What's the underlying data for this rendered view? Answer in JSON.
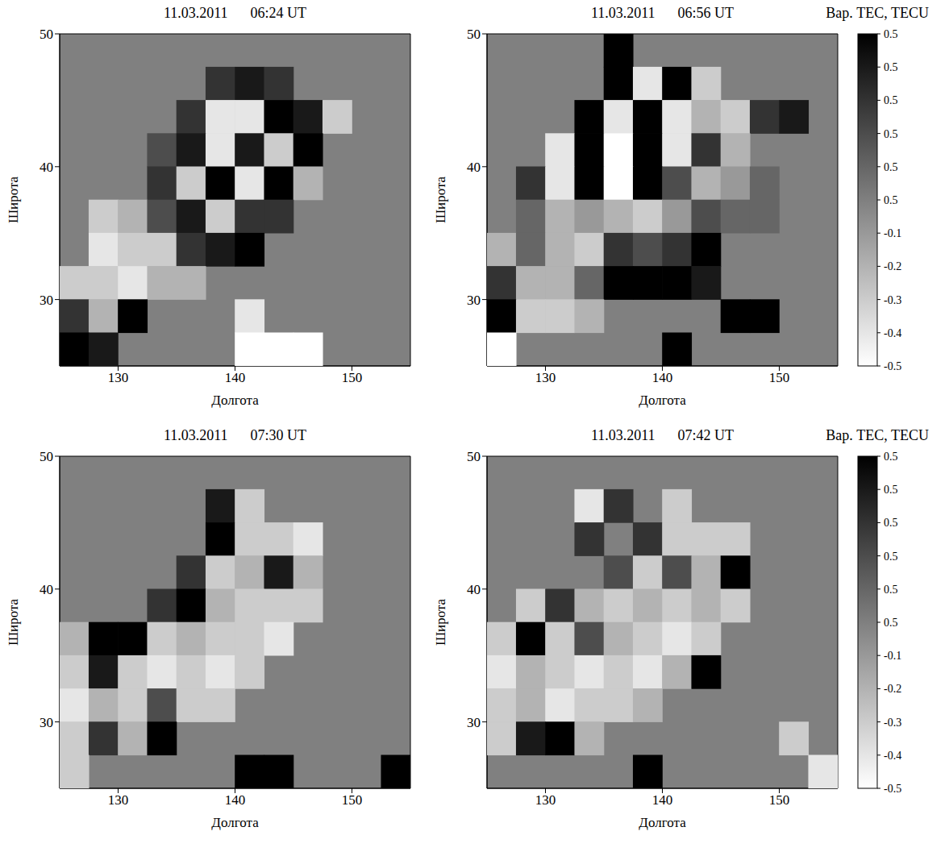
{
  "chart_data": [
    {
      "type": "heatmap",
      "title": "11.03.2011 06:24 UT",
      "x_label": "Долгота",
      "y_label": "Широта",
      "xlim": [
        125,
        155
      ],
      "ylim": [
        25,
        50
      ],
      "xticks": [
        130,
        140,
        150
      ],
      "yticks": [
        30,
        40,
        50
      ],
      "cells": {
        "x": [
          126.25,
          128.75,
          131.25,
          133.75,
          136.25,
          138.75,
          141.25,
          143.75,
          146.25,
          148.75,
          151.25,
          153.75
        ],
        "y": [
          48.75,
          46.25,
          43.75,
          41.25,
          38.75,
          36.25,
          33.75,
          31.25,
          28.75,
          26.25
        ],
        "values": [
          [
            null,
            null,
            null,
            null,
            null,
            null,
            null,
            null,
            null,
            null,
            null,
            null
          ],
          [
            null,
            null,
            null,
            null,
            null,
            0.3,
            0.4,
            0.3,
            null,
            null,
            null,
            null
          ],
          [
            null,
            null,
            null,
            null,
            0.3,
            -0.4,
            -0.4,
            0.5,
            0.4,
            -0.3,
            null,
            null
          ],
          [
            null,
            null,
            null,
            0.2,
            0.4,
            -0.4,
            0.4,
            -0.3,
            0.5,
            null,
            null,
            null
          ],
          [
            null,
            null,
            null,
            0.3,
            -0.3,
            0.5,
            -0.4,
            0.5,
            -0.2,
            null,
            null,
            null
          ],
          [
            null,
            -0.3,
            -0.2,
            0.2,
            0.4,
            -0.3,
            0.3,
            0.3,
            null,
            null,
            null,
            null
          ],
          [
            null,
            -0.4,
            -0.3,
            -0.3,
            0.3,
            0.4,
            0.5,
            null,
            null,
            null,
            null,
            null
          ],
          [
            -0.3,
            -0.3,
            -0.4,
            -0.2,
            -0.2,
            null,
            null,
            null,
            null,
            null,
            null,
            null
          ],
          [
            0.3,
            -0.2,
            0.5,
            null,
            null,
            null,
            -0.4,
            null,
            null,
            null,
            null,
            null
          ],
          [
            0.5,
            0.4,
            null,
            null,
            null,
            null,
            -0.5,
            -0.5,
            -0.5,
            null,
            null,
            null
          ]
        ]
      }
    },
    {
      "type": "heatmap",
      "title": "11.03.2011 06:56 UT",
      "x_label": "Долгота",
      "y_label": "Широта",
      "xlim": [
        125,
        155
      ],
      "ylim": [
        25,
        50
      ],
      "xticks": [
        130,
        140,
        150
      ],
      "yticks": [
        30,
        40,
        50
      ],
      "cells": {
        "x": [
          126.25,
          128.75,
          131.25,
          133.75,
          136.25,
          138.75,
          141.25,
          143.75,
          146.25,
          148.75,
          151.25,
          153.75
        ],
        "y": [
          48.75,
          46.25,
          43.75,
          41.25,
          38.75,
          36.25,
          33.75,
          31.25,
          28.75,
          26.25
        ],
        "values": [
          [
            null,
            null,
            null,
            null,
            0.5,
            null,
            null,
            null,
            null,
            null,
            null,
            null
          ],
          [
            null,
            null,
            null,
            null,
            0.5,
            -0.4,
            0.5,
            -0.3,
            null,
            null,
            null,
            null
          ],
          [
            null,
            null,
            null,
            0.5,
            -0.4,
            0.5,
            -0.4,
            -0.2,
            -0.3,
            0.3,
            0.4,
            null
          ],
          [
            null,
            null,
            -0.4,
            0.5,
            -0.5,
            0.5,
            -0.4,
            0.3,
            -0.2,
            null,
            null,
            null
          ],
          [
            null,
            0.3,
            -0.4,
            0.5,
            -0.5,
            0.5,
            0.2,
            -0.2,
            -0.1,
            0.1,
            null,
            null
          ],
          [
            null,
            0.1,
            -0.2,
            -0.1,
            -0.2,
            -0.3,
            -0.1,
            0.2,
            0.1,
            0.1,
            null,
            null
          ],
          [
            -0.2,
            0.1,
            -0.2,
            -0.3,
            0.3,
            0.2,
            0.3,
            0.5,
            null,
            null,
            null,
            null
          ],
          [
            0.3,
            -0.2,
            -0.2,
            0.1,
            0.5,
            0.5,
            0.5,
            0.4,
            null,
            null,
            null,
            null
          ],
          [
            0.5,
            -0.3,
            -0.3,
            -0.2,
            null,
            null,
            null,
            null,
            0.5,
            0.5,
            null,
            null
          ],
          [
            -0.5,
            null,
            null,
            null,
            null,
            null,
            0.5,
            null,
            null,
            null,
            null,
            null
          ]
        ]
      },
      "colorbar": {
        "title": "Вар. TEC, TECU",
        "range": [
          -0.5,
          0.5
        ],
        "labels": [
          "0.5",
          "0.5",
          "0.5",
          "0.5",
          "0.5",
          "0.5",
          "-0.1",
          "-0.2",
          "-0.3",
          "-0.4",
          "-0.5"
        ]
      }
    },
    {
      "type": "heatmap",
      "title": "11.03.2011 07:30 UT",
      "x_label": "Долгота",
      "y_label": "Широта",
      "xlim": [
        125,
        155
      ],
      "ylim": [
        25,
        50
      ],
      "xticks": [
        130,
        140,
        150
      ],
      "yticks": [
        30,
        40,
        50
      ],
      "cells": {
        "x": [
          126.25,
          128.75,
          131.25,
          133.75,
          136.25,
          138.75,
          141.25,
          143.75,
          146.25,
          148.75,
          151.25,
          153.75
        ],
        "y": [
          48.75,
          46.25,
          43.75,
          41.25,
          38.75,
          36.25,
          33.75,
          31.25,
          28.75,
          26.25
        ],
        "values": [
          [
            null,
            null,
            null,
            null,
            null,
            null,
            null,
            null,
            null,
            null,
            null,
            null
          ],
          [
            null,
            null,
            null,
            null,
            null,
            0.4,
            -0.3,
            null,
            null,
            null,
            null,
            null
          ],
          [
            null,
            null,
            null,
            null,
            null,
            0.5,
            -0.3,
            -0.3,
            -0.4,
            null,
            null,
            null
          ],
          [
            null,
            null,
            null,
            null,
            0.3,
            -0.3,
            -0.2,
            0.4,
            -0.2,
            null,
            null,
            null
          ],
          [
            null,
            null,
            null,
            0.3,
            0.5,
            -0.2,
            -0.3,
            -0.3,
            -0.3,
            null,
            null,
            null
          ],
          [
            -0.2,
            0.5,
            0.5,
            -0.3,
            -0.2,
            -0.3,
            -0.3,
            -0.4,
            null,
            null,
            null,
            null
          ],
          [
            -0.3,
            0.4,
            -0.3,
            -0.4,
            -0.3,
            -0.4,
            -0.3,
            null,
            null,
            null,
            null,
            null
          ],
          [
            -0.4,
            -0.2,
            -0.3,
            0.2,
            -0.3,
            -0.3,
            null,
            null,
            null,
            null,
            null,
            null
          ],
          [
            -0.3,
            0.3,
            -0.2,
            0.5,
            null,
            null,
            null,
            null,
            null,
            null,
            null,
            null
          ],
          [
            -0.3,
            null,
            null,
            null,
            null,
            null,
            0.5,
            0.5,
            null,
            null,
            null,
            0.5
          ]
        ]
      }
    },
    {
      "type": "heatmap",
      "title": "11.03.2011 07:42 UT",
      "x_label": "Долгота",
      "y_label": "Широта",
      "xlim": [
        125,
        155
      ],
      "ylim": [
        25,
        50
      ],
      "xticks": [
        130,
        140,
        150
      ],
      "yticks": [
        30,
        40,
        50
      ],
      "cells": {
        "x": [
          126.25,
          128.75,
          131.25,
          133.75,
          136.25,
          138.75,
          141.25,
          143.75,
          146.25,
          148.75,
          151.25,
          153.75
        ],
        "y": [
          48.75,
          46.25,
          43.75,
          41.25,
          38.75,
          36.25,
          33.75,
          31.25,
          28.75,
          26.25
        ],
        "values": [
          [
            null,
            null,
            null,
            null,
            null,
            null,
            null,
            null,
            null,
            null,
            null,
            null
          ],
          [
            null,
            null,
            null,
            -0.4,
            0.3,
            null,
            -0.3,
            null,
            null,
            null,
            null,
            null
          ],
          [
            null,
            null,
            null,
            0.3,
            null,
            0.3,
            -0.3,
            -0.3,
            -0.3,
            null,
            null,
            null
          ],
          [
            null,
            null,
            null,
            null,
            0.2,
            -0.3,
            0.2,
            -0.2,
            0.5,
            null,
            null,
            null
          ],
          [
            null,
            -0.3,
            0.3,
            -0.2,
            -0.3,
            -0.2,
            -0.3,
            -0.2,
            -0.3,
            null,
            null,
            null
          ],
          [
            -0.3,
            0.5,
            -0.3,
            0.2,
            -0.2,
            -0.3,
            -0.4,
            -0.3,
            null,
            null,
            null,
            null
          ],
          [
            -0.4,
            -0.2,
            -0.3,
            -0.4,
            -0.3,
            -0.4,
            -0.2,
            0.5,
            null,
            null,
            null,
            null
          ],
          [
            -0.3,
            -0.2,
            -0.4,
            -0.3,
            -0.3,
            -0.2,
            null,
            null,
            null,
            null,
            null,
            null
          ],
          [
            -0.3,
            0.4,
            0.5,
            -0.2,
            null,
            null,
            null,
            null,
            null,
            null,
            -0.3,
            null
          ],
          [
            null,
            null,
            null,
            null,
            null,
            0.5,
            null,
            null,
            null,
            null,
            null,
            -0.4
          ]
        ]
      },
      "colorbar": {
        "title": "Вар. TEC, TECU",
        "range": [
          -0.5,
          0.5
        ],
        "labels": [
          "0.5",
          "0.5",
          "0.5",
          "0.5",
          "0.5",
          "0.5",
          "-0.1",
          "-0.2",
          "-0.3",
          "-0.4",
          "-0.5"
        ]
      }
    }
  ]
}
